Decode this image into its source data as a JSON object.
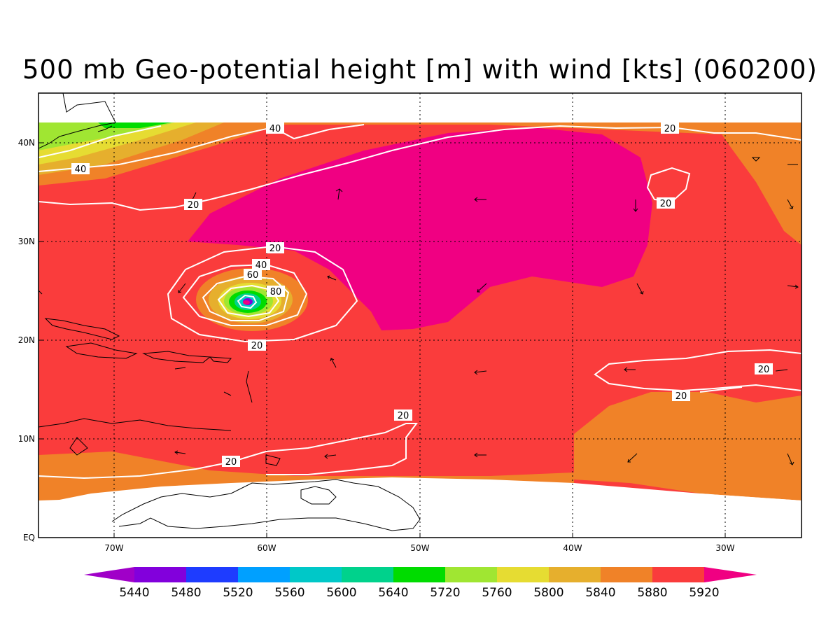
{
  "title": "500 mb Geo-potential height [m] with wind [kts] (060200)",
  "axes": {
    "lat_labels": [
      "40N",
      "30N",
      "20N",
      "10N",
      "EQ"
    ],
    "lon_labels": [
      "70W",
      "60W",
      "50W",
      "40W",
      "30W"
    ]
  },
  "wind_contour_labels": [
    "40",
    "40",
    "20",
    "20",
    "20",
    "40",
    "60",
    "80",
    "20",
    "20",
    "20",
    "20",
    "20",
    "20"
  ],
  "colorbar": {
    "levels": [
      "5440",
      "5480",
      "5520",
      "5560",
      "5600",
      "5640",
      "5720",
      "5760",
      "5800",
      "5840",
      "5880",
      "5920"
    ],
    "colors": [
      "#a000c8",
      "#8200dc",
      "#1e3cff",
      "#00a0ff",
      "#00c8c8",
      "#00d28c",
      "#00dc00",
      "#a0e632",
      "#e6dc32",
      "#e6af2d",
      "#f08228",
      "#fa3c3c",
      "#f00082"
    ]
  },
  "chart_data": {
    "type": "heatmap",
    "title": "500 mb Geo-potential height [m] with wind [kts] (060200)",
    "x_range": [
      "75W",
      "25W"
    ],
    "y_range": [
      "0",
      "45N"
    ],
    "contour_variable": "wind [kts]",
    "contour_levels": [
      20,
      40,
      60,
      80
    ],
    "low_center": {
      "lon": "61W",
      "lat": "24N"
    }
  }
}
